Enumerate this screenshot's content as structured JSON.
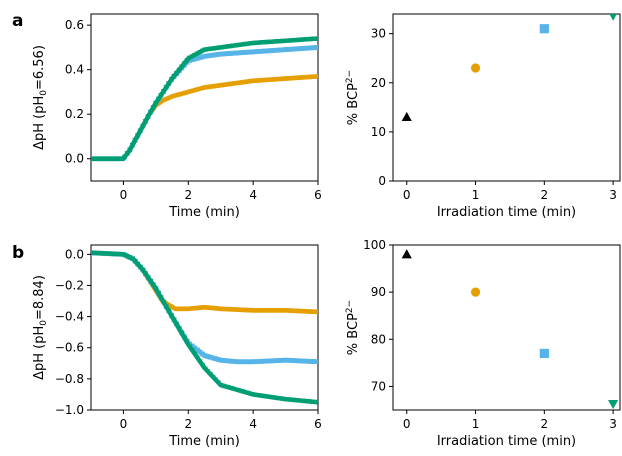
{
  "panels": [
    {
      "letter": "a"
    },
    {
      "letter": "b"
    }
  ],
  "chart_data": [
    {
      "id": "a-left",
      "type": "line",
      "xlabel": "Time (min)",
      "ylabel": "ΔpH (pH₀=6.56)",
      "ylabel_parts": [
        "ΔpH (pH",
        "0",
        "=6.56)"
      ],
      "xlim": [
        -1,
        6
      ],
      "ylim": [
        -0.1,
        0.65
      ],
      "xticks": [
        0,
        2,
        4,
        6
      ],
      "yticks": [
        0.0,
        0.2,
        0.4,
        0.6
      ],
      "ytick_labels": [
        "0.0",
        "0.2",
        "0.4",
        "0.6"
      ],
      "grid": false,
      "series": [
        {
          "color": "#E69F00",
          "marker": "circle",
          "x": [
            -1,
            0,
            0.2,
            0.5,
            0.8,
            1.0,
            1.2,
            1.5,
            2.0,
            2.5,
            3.0,
            4.0,
            5.0,
            6.0
          ],
          "y": [
            0.0,
            0.0,
            0.04,
            0.12,
            0.2,
            0.24,
            0.26,
            0.28,
            0.3,
            0.32,
            0.33,
            0.35,
            0.36,
            0.37
          ]
        },
        {
          "color": "#56B4E9",
          "marker": "square",
          "x": [
            -1,
            0,
            0.2,
            0.5,
            0.8,
            1.0,
            1.5,
            2.0,
            2.5,
            3.0,
            4.0,
            5.0,
            6.0
          ],
          "y": [
            0.0,
            0.0,
            0.04,
            0.12,
            0.2,
            0.25,
            0.36,
            0.44,
            0.46,
            0.47,
            0.48,
            0.49,
            0.5
          ]
        },
        {
          "color": "#009E73",
          "marker": "triangle-down",
          "x": [
            -1,
            0,
            0.2,
            0.5,
            0.8,
            1.0,
            1.5,
            2.0,
            2.5,
            3.0,
            4.0,
            5.0,
            6.0
          ],
          "y": [
            0.0,
            0.0,
            0.04,
            0.12,
            0.2,
            0.25,
            0.36,
            0.45,
            0.49,
            0.5,
            0.52,
            0.53,
            0.54
          ]
        }
      ]
    },
    {
      "id": "a-right",
      "type": "scatter",
      "xlabel": "Irradiation time (min)",
      "ylabel": "% BCP²⁻",
      "ylabel_parts": [
        "% BCP",
        "2−"
      ],
      "xlim": [
        -0.2,
        3.1
      ],
      "ylim": [
        0,
        34
      ],
      "xticks": [
        0,
        1,
        2,
        3
      ],
      "yticks": [
        0,
        10,
        20,
        30
      ],
      "ytick_labels": [
        "0",
        "10",
        "20",
        "30"
      ],
      "grid": false,
      "points": [
        {
          "x": 0,
          "y": 13,
          "color": "#000000",
          "marker": "triangle-up"
        },
        {
          "x": 1,
          "y": 23,
          "color": "#E69F00",
          "marker": "circle"
        },
        {
          "x": 2,
          "y": 31,
          "color": "#56B4E9",
          "marker": "square"
        },
        {
          "x": 3,
          "y": 33.7,
          "color": "#009E73",
          "marker": "triangle-down"
        }
      ]
    },
    {
      "id": "b-left",
      "type": "line",
      "xlabel": "Time (min)",
      "ylabel": "ΔpH (pH₀=8.84)",
      "ylabel_parts": [
        "ΔpH (pH",
        "0",
        "=8.84)"
      ],
      "xlim": [
        -1,
        6
      ],
      "ylim": [
        -1.0,
        0.06
      ],
      "xticks": [
        0,
        2,
        4,
        6
      ],
      "yticks": [
        0.0,
        -0.2,
        -0.4,
        -0.6,
        -0.8,
        -1.0
      ],
      "ytick_labels": [
        "0.0",
        "−0.2",
        "−0.4",
        "−0.6",
        "−0.8",
        "−1.0"
      ],
      "grid": false,
      "series": [
        {
          "color": "#E69F00",
          "marker": "circle",
          "x": [
            -1,
            0,
            0.3,
            0.6,
            0.9,
            1.2,
            1.6,
            2.0,
            2.5,
            3.0,
            4.0,
            5.0,
            6.0
          ],
          "y": [
            0.01,
            0.0,
            -0.03,
            -0.1,
            -0.2,
            -0.3,
            -0.35,
            -0.35,
            -0.34,
            -0.35,
            -0.36,
            -0.36,
            -0.37
          ]
        },
        {
          "color": "#56B4E9",
          "marker": "square",
          "x": [
            -1,
            0,
            0.3,
            0.6,
            1.0,
            1.5,
            2.0,
            2.5,
            3.0,
            3.5,
            4.0,
            5.0,
            6.0
          ],
          "y": [
            0.01,
            0.0,
            -0.03,
            -0.1,
            -0.22,
            -0.4,
            -0.57,
            -0.65,
            -0.68,
            -0.69,
            -0.69,
            -0.68,
            -0.69
          ]
        },
        {
          "color": "#009E73",
          "marker": "triangle-down",
          "x": [
            -1,
            0,
            0.3,
            0.6,
            1.0,
            1.5,
            2.0,
            2.5,
            3.0,
            3.5,
            4.0,
            5.0,
            6.0
          ],
          "y": [
            0.01,
            0.0,
            -0.03,
            -0.1,
            -0.22,
            -0.4,
            -0.58,
            -0.73,
            -0.84,
            -0.87,
            -0.9,
            -0.93,
            -0.95
          ]
        }
      ]
    },
    {
      "id": "b-right",
      "type": "scatter",
      "xlabel": "Irradiation time (min)",
      "ylabel": "% BCP²⁻",
      "ylabel_parts": [
        "% BCP",
        "2−"
      ],
      "xlim": [
        -0.2,
        3.1
      ],
      "ylim": [
        65,
        100
      ],
      "xticks": [
        0,
        1,
        2,
        3
      ],
      "yticks": [
        70,
        80,
        90,
        100
      ],
      "ytick_labels": [
        "70",
        "80",
        "90",
        "100"
      ],
      "grid": false,
      "points": [
        {
          "x": 0,
          "y": 98,
          "color": "#000000",
          "marker": "triangle-up"
        },
        {
          "x": 1,
          "y": 90,
          "color": "#E69F00",
          "marker": "circle"
        },
        {
          "x": 2,
          "y": 77,
          "color": "#56B4E9",
          "marker": "square"
        },
        {
          "x": 3,
          "y": 66.3,
          "color": "#009E73",
          "marker": "triangle-down"
        }
      ]
    }
  ]
}
